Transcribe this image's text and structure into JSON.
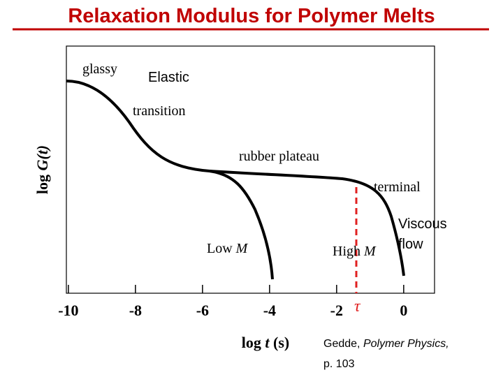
{
  "header": {
    "title": "Relaxation Modulus for Polymer Melts"
  },
  "axes": {
    "y_label": {
      "fn": "log",
      "var": "G(t)"
    },
    "x_label": {
      "fn": "log",
      "var": "t",
      "unit": "(s)"
    },
    "xlim": [
      -10.06,
      0.92
    ],
    "xticks": [
      -10,
      -8,
      -6,
      -4,
      -2,
      0
    ]
  },
  "annotations": {
    "glassy": "glassy",
    "elastic": "Elastic",
    "transition": "transition",
    "rubber_plateau": "rubber plateau",
    "terminal": "terminal",
    "viscous": "Viscous",
    "flow": "flow",
    "low_m": {
      "text": "Low",
      "var": "M"
    },
    "high_m": {
      "text": "High",
      "var": "M"
    },
    "tau": "τ"
  },
  "citation": {
    "author": "Gedde,",
    "book": "Polymer Physics,",
    "page": "p. 103"
  }
}
